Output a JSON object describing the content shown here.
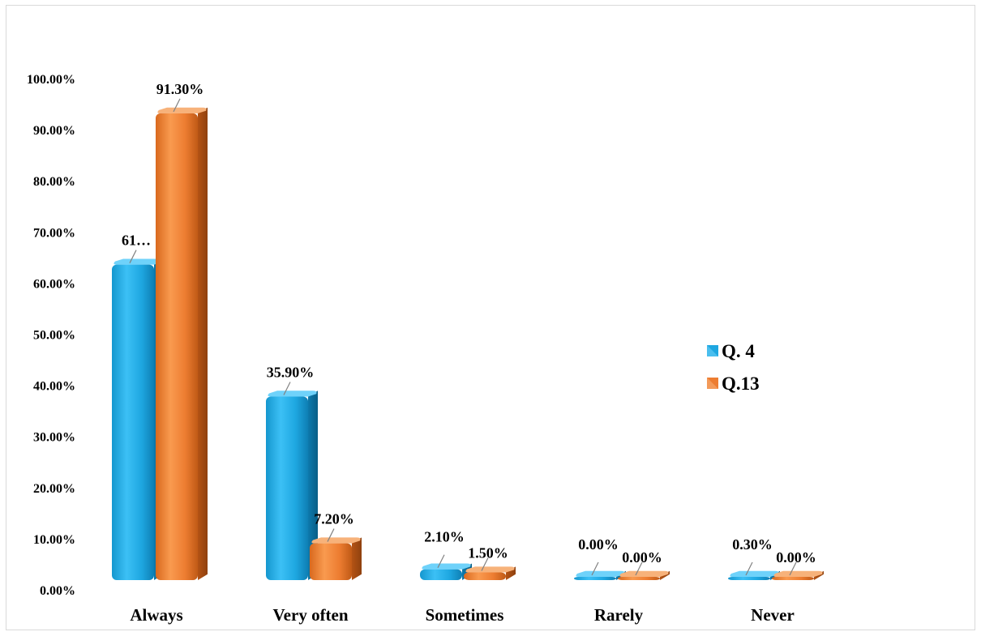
{
  "chart_data": {
    "type": "bar",
    "categories": [
      "Always",
      "Very often",
      "Sometimes",
      "Rarely",
      "Never"
    ],
    "series": [
      {
        "name": "Q. 4",
        "values": [
          61.7,
          35.9,
          2.1,
          0.0,
          0.3
        ],
        "labels": [
          "61…",
          "35.90%",
          "2.10%",
          "0.00%",
          "0.30%"
        ],
        "color": "#1ea7e1"
      },
      {
        "name": "Q.13",
        "values": [
          91.3,
          7.2,
          1.5,
          0.0,
          0.0
        ],
        "labels": [
          "91.30%",
          "7.20%",
          "1.50%",
          "0.00%",
          "0.00%"
        ],
        "color": "#ed7d31"
      }
    ],
    "ylim": [
      0,
      100
    ],
    "yticks": [
      "0.00%",
      "10.00%",
      "20.00%",
      "30.00%",
      "40.00%",
      "50.00%",
      "60.00%",
      "70.00%",
      "80.00%",
      "90.00%",
      "100.00%"
    ],
    "title": "",
    "xlabel": "",
    "ylabel": "",
    "grid": false,
    "legend_position": "right"
  }
}
